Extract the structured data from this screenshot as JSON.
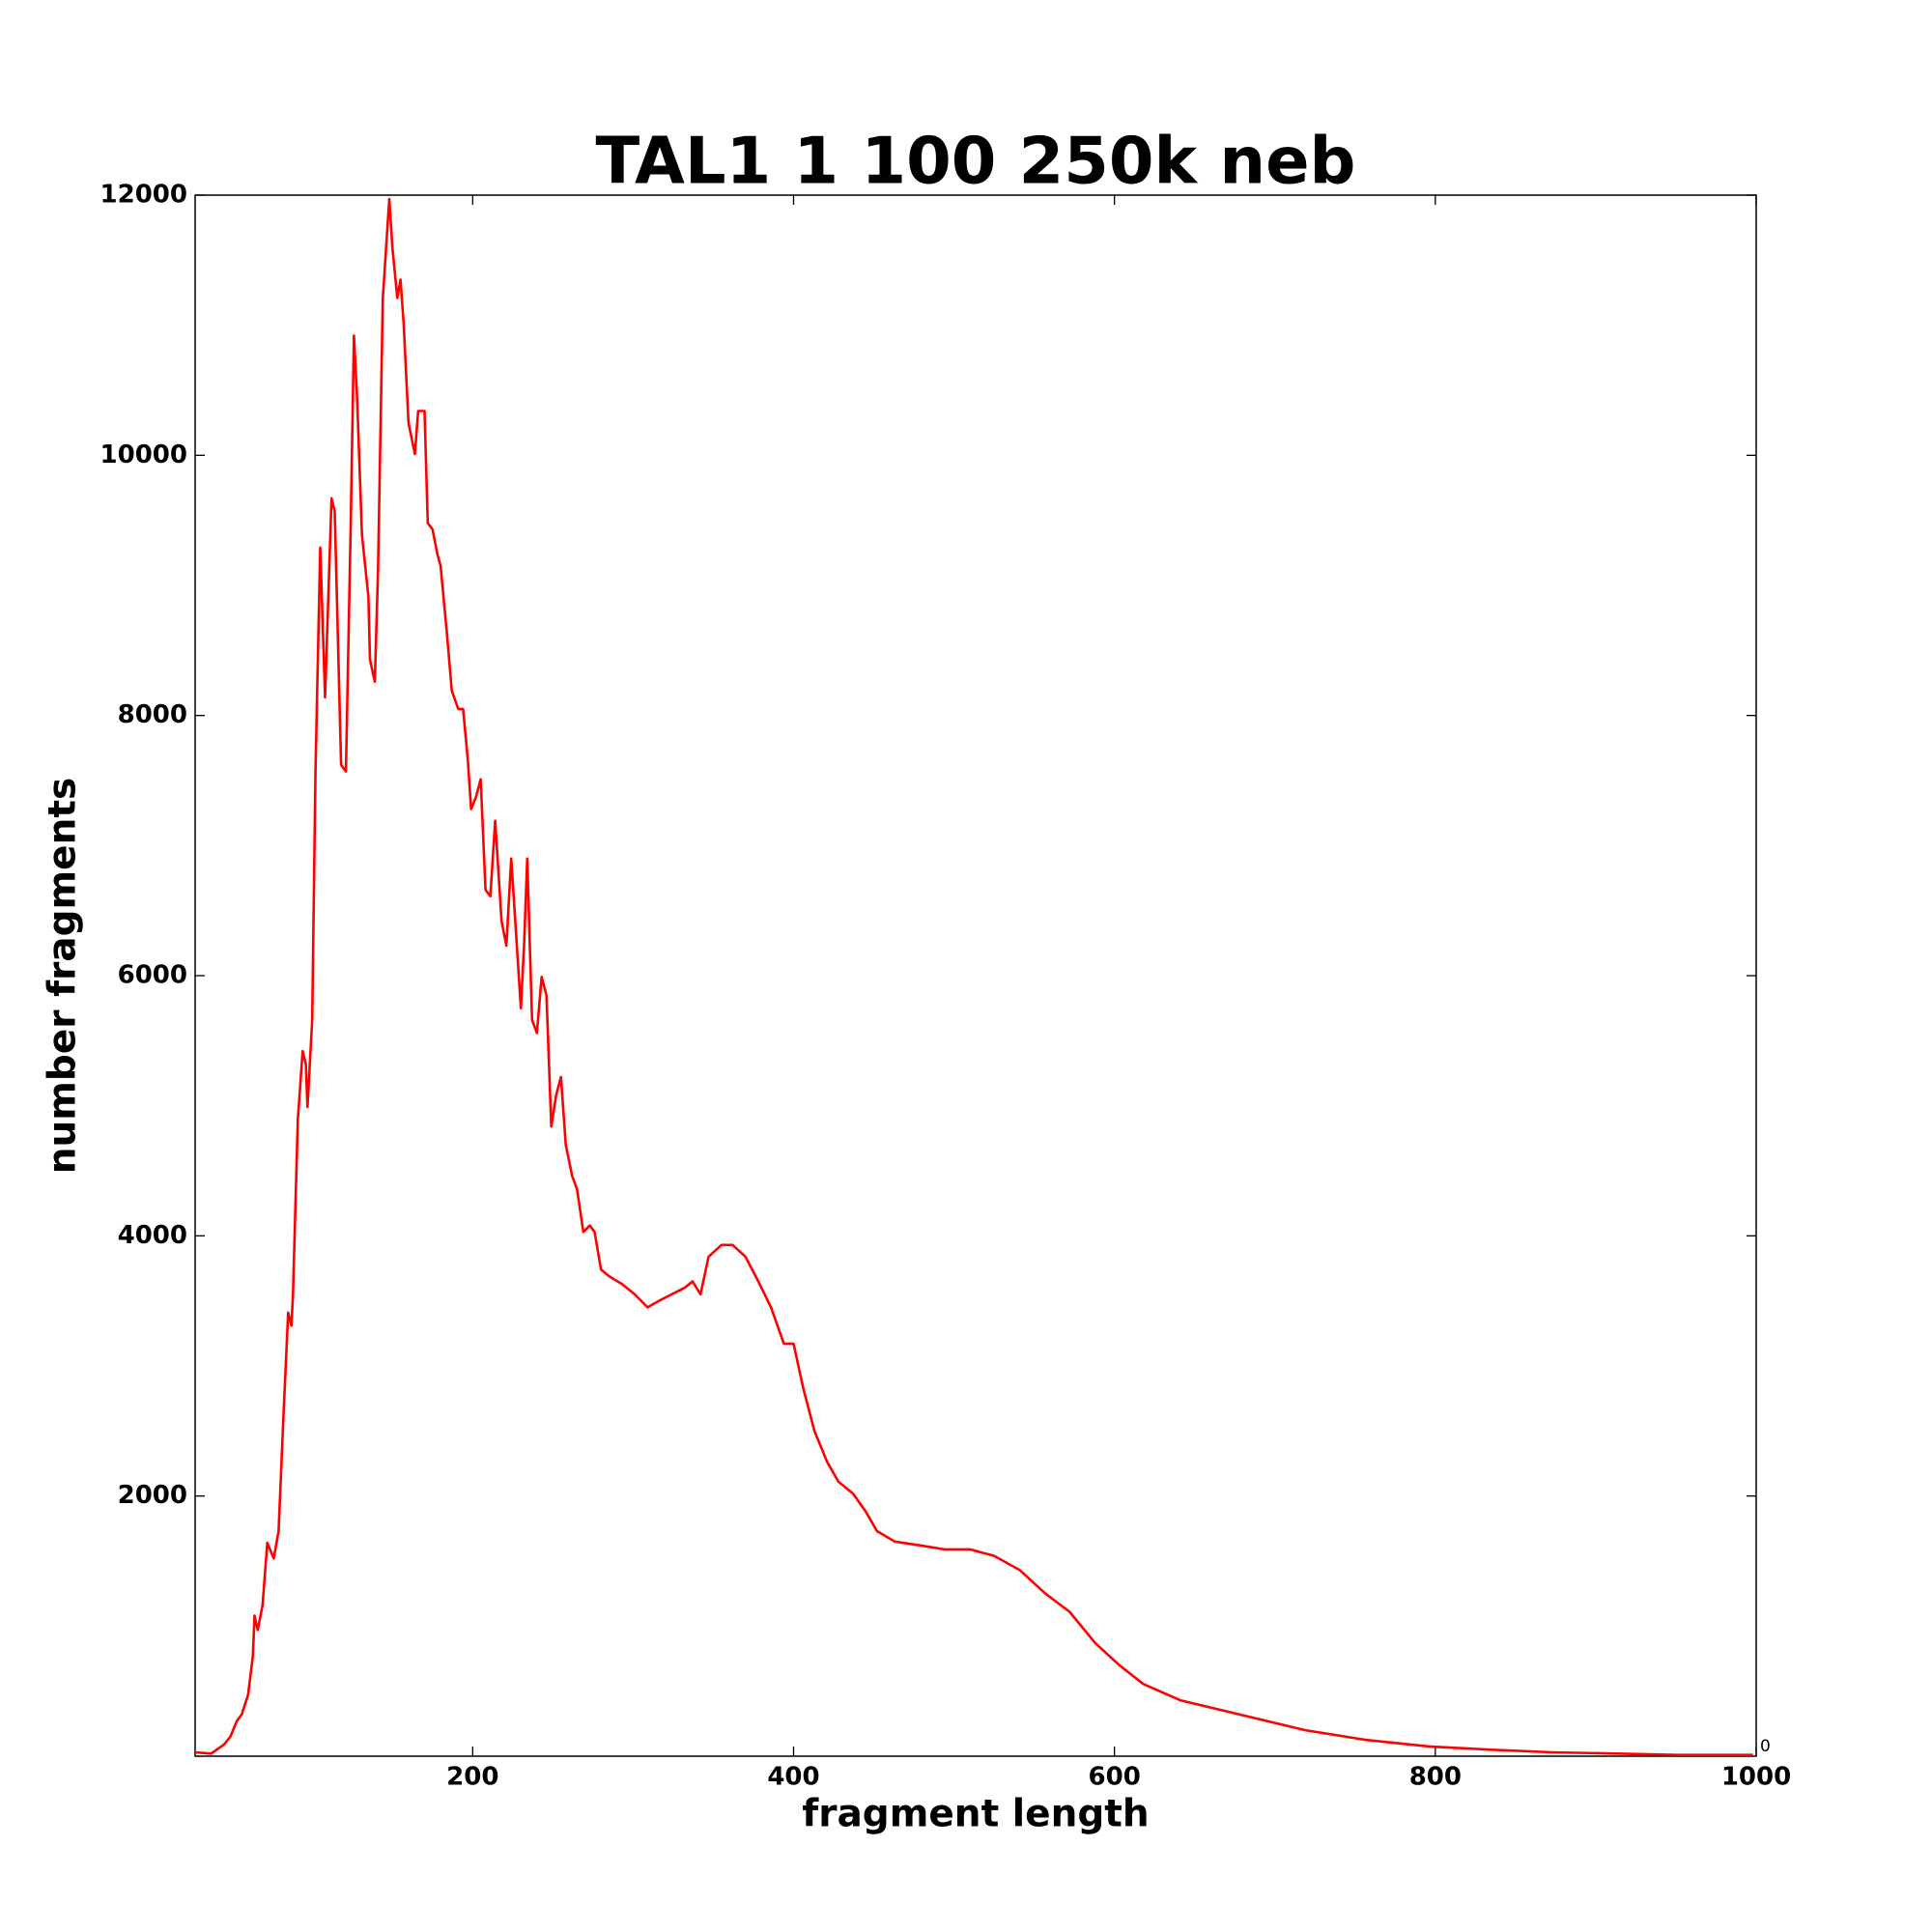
{
  "chart_data": {
    "type": "line",
    "title": "TAL1 1 100 250k neb",
    "x_label": "fragment length",
    "y_label": "number fragments",
    "annotation": "0",
    "xlim": [
      27,
      1000
    ],
    "ylim": [
      0,
      12000
    ],
    "xticks": [
      200,
      400,
      600,
      800,
      1000
    ],
    "yticks": [
      2000,
      4000,
      6000,
      8000,
      10000,
      12000
    ],
    "x": [
      27,
      37,
      45,
      49,
      53,
      56,
      60,
      63,
      64,
      66,
      69,
      72,
      76,
      79,
      82,
      85,
      87,
      88,
      91,
      94,
      96,
      97,
      100,
      102,
      105,
      108,
      112,
      114,
      118,
      121,
      124,
      126,
      128,
      131,
      135,
      136,
      139,
      141,
      144,
      148,
      150,
      153,
      155,
      157,
      160,
      164,
      166,
      170,
      172,
      175,
      178,
      180,
      184,
      187,
      191,
      194,
      197,
      199,
      202,
      205,
      208,
      211,
      214,
      218,
      221,
      224,
      227,
      230,
      232,
      234,
      237,
      240,
      243,
      246,
      249,
      252,
      255,
      258,
      262,
      265,
      269,
      273,
      276,
      280,
      285,
      293,
      301,
      309,
      316,
      324,
      332,
      337,
      342,
      347,
      355,
      362,
      370,
      378,
      386,
      394,
      400,
      406,
      413,
      421,
      428,
      437,
      445,
      452,
      463,
      479,
      494,
      510,
      525,
      541,
      557,
      572,
      588,
      603,
      618,
      641,
      680,
      719,
      757,
      796,
      835,
      873,
      913,
      951,
      998
    ],
    "series": [
      {
        "name": "fragments",
        "color": "#ff0000",
        "values": [
          30,
          20,
          90,
          150,
          270,
          320,
          470,
          775,
          1080,
          970,
          1160,
          1640,
          1520,
          1730,
          2590,
          3410,
          3310,
          3550,
          4890,
          5420,
          5320,
          4990,
          5660,
          7570,
          9290,
          8140,
          9670,
          9570,
          7620,
          7570,
          9480,
          10920,
          10440,
          9390,
          8910,
          8430,
          8260,
          9100,
          11210,
          11970,
          11590,
          11210,
          11350,
          11010,
          10250,
          10010,
          10340,
          10340,
          9480,
          9430,
          9240,
          9150,
          8620,
          8190,
          8050,
          8050,
          7660,
          7280,
          7370,
          7510,
          6660,
          6610,
          7190,
          6420,
          6230,
          6900,
          6330,
          5750,
          6230,
          6900,
          5660,
          5560,
          5990,
          5850,
          4840,
          5080,
          5220,
          4700,
          4460,
          4360,
          4030,
          4080,
          4030,
          3740,
          3690,
          3630,
          3550,
          3450,
          3500,
          3550,
          3600,
          3650,
          3550,
          3840,
          3930,
          3930,
          3840,
          3650,
          3450,
          3170,
          3170,
          2830,
          2500,
          2260,
          2110,
          2020,
          1880,
          1730,
          1650,
          1620,
          1590,
          1590,
          1540,
          1430,
          1250,
          1110,
          870,
          700,
          555,
          430,
          315,
          200,
          125,
          75,
          50,
          30,
          20,
          10,
          10
        ]
      }
    ]
  }
}
